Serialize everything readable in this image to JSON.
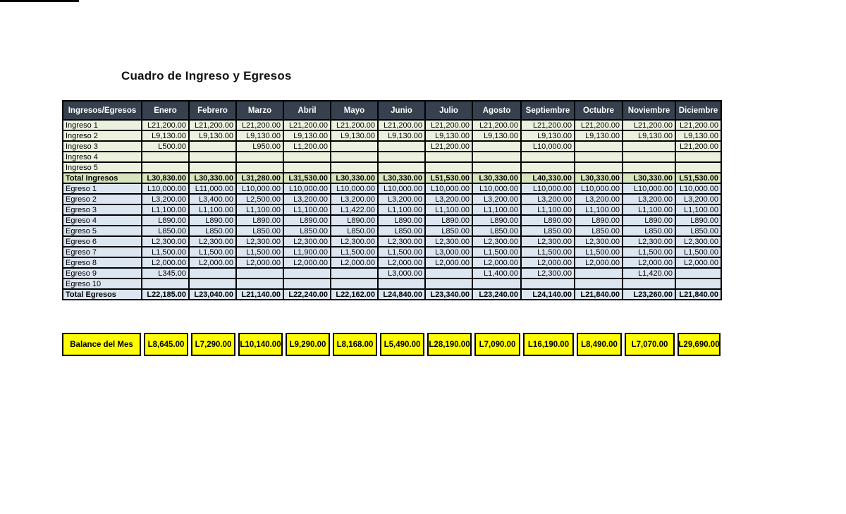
{
  "title": "Cuadro de Ingreso y Egresos",
  "currency_prefix": "L",
  "colors": {
    "header_bg": "#36404E",
    "header_text": "#FFFFFF",
    "ingreso_bg": "#EBF1DE",
    "total_ingresos_bg": "#D7E4BC",
    "egreso_bg": "#DCE6F1",
    "total_egresos_bg": "#DCE6F1",
    "balance_bg": "#FFFF00",
    "border": "#000000"
  },
  "table": {
    "header": [
      "Ingresos/Egresos",
      "Enero",
      "Febrero",
      "Marzo",
      "Abril",
      "Mayo",
      "Junio",
      "Julio",
      "Agosto",
      "Septiembre",
      "Octubre",
      "Noviembre",
      "Diciembre"
    ],
    "rows": [
      {
        "label": "Ingreso 1",
        "type": "ingreso",
        "values": [
          "L21,200.00",
          "L21,200.00",
          "L21,200.00",
          "L21,200.00",
          "L21,200.00",
          "L21,200.00",
          "L21,200.00",
          "L21,200.00",
          "L21,200.00",
          "L21,200.00",
          "L21,200.00",
          "L21,200.00"
        ]
      },
      {
        "label": "Ingreso 2",
        "type": "ingreso",
        "values": [
          "L9,130.00",
          "L9,130.00",
          "L9,130.00",
          "L9,130.00",
          "L9,130.00",
          "L9,130.00",
          "L9,130.00",
          "L9,130.00",
          "L9,130.00",
          "L9,130.00",
          "L9,130.00",
          "L9,130.00"
        ]
      },
      {
        "label": "Ingreso 3",
        "type": "ingreso",
        "values": [
          "L500.00",
          "",
          "L950.00",
          "L1,200.00",
          "",
          "",
          "L21,200.00",
          "",
          "L10,000.00",
          "",
          "",
          "L21,200.00"
        ]
      },
      {
        "label": "Ingreso 4",
        "type": "ingreso",
        "values": [
          "",
          "",
          "",
          "",
          "",
          "",
          "",
          "",
          "",
          "",
          "",
          ""
        ]
      },
      {
        "label": "Ingreso 5",
        "type": "ingreso",
        "values": [
          "",
          "",
          "",
          "",
          "",
          "",
          "",
          "",
          "",
          "",
          "",
          ""
        ]
      },
      {
        "label": "Total Ingresos",
        "type": "total-ingresos",
        "values": [
          "L30,830.00",
          "L30,330.00",
          "L31,280.00",
          "L31,530.00",
          "L30,330.00",
          "L30,330.00",
          "L51,530.00",
          "L30,330.00",
          "L40,330.00",
          "L30,330.00",
          "L30,330.00",
          "L51,530.00"
        ]
      },
      {
        "label": "Egreso 1",
        "type": "egreso",
        "values": [
          "L10,000.00",
          "L11,000.00",
          "L10,000.00",
          "L10,000.00",
          "L10,000.00",
          "L10,000.00",
          "L10,000.00",
          "L10,000.00",
          "L10,000.00",
          "L10,000.00",
          "L10,000.00",
          "L10,000.00"
        ]
      },
      {
        "label": "Egreso 2",
        "type": "egreso",
        "values": [
          "L3,200.00",
          "L3,400.00",
          "L2,500.00",
          "L3,200.00",
          "L3,200.00",
          "L3,200.00",
          "L3,200.00",
          "L3,200.00",
          "L3,200.00",
          "L3,200.00",
          "L3,200.00",
          "L3,200.00"
        ]
      },
      {
        "label": "Egreso 3",
        "type": "egreso",
        "values": [
          "L1,100.00",
          "L1,100.00",
          "L1,100.00",
          "L1,100.00",
          "L1,422.00",
          "L1,100.00",
          "L1,100.00",
          "L1,100.00",
          "L1,100.00",
          "L1,100.00",
          "L1,100.00",
          "L1,100.00"
        ]
      },
      {
        "label": "Egreso 4",
        "type": "egreso",
        "values": [
          "L890.00",
          "L890.00",
          "L890.00",
          "L890.00",
          "L890.00",
          "L890.00",
          "L890.00",
          "L890.00",
          "L890.00",
          "L890.00",
          "L890.00",
          "L890.00"
        ]
      },
      {
        "label": "Egreso 5",
        "type": "egreso",
        "values": [
          "L850.00",
          "L850.00",
          "L850.00",
          "L850.00",
          "L850.00",
          "L850.00",
          "L850.00",
          "L850.00",
          "L850.00",
          "L850.00",
          "L850.00",
          "L850.00"
        ]
      },
      {
        "label": "Egreso 6",
        "type": "egreso",
        "values": [
          "L2,300.00",
          "L2,300.00",
          "L2,300.00",
          "L2,300.00",
          "L2,300.00",
          "L2,300.00",
          "L2,300.00",
          "L2,300.00",
          "L2,300.00",
          "L2,300.00",
          "L2,300.00",
          "L2,300.00"
        ]
      },
      {
        "label": "Egreso 7",
        "type": "egreso",
        "values": [
          "L1,500.00",
          "L1,500.00",
          "L1,500.00",
          "L1,900.00",
          "L1,500.00",
          "L1,500.00",
          "L3,000.00",
          "L1,500.00",
          "L1,500.00",
          "L1,500.00",
          "L1,500.00",
          "L1,500.00"
        ]
      },
      {
        "label": "Egreso 8",
        "type": "egreso",
        "values": [
          "L2,000.00",
          "L2,000.00",
          "L2,000.00",
          "L2,000.00",
          "L2,000.00",
          "L2,000.00",
          "L2,000.00",
          "L2,000.00",
          "L2,000.00",
          "L2,000.00",
          "L2,000.00",
          "L2,000.00"
        ]
      },
      {
        "label": "Egreso 9",
        "type": "egreso",
        "values": [
          "L345.00",
          "",
          "",
          "",
          "",
          "L3,000.00",
          "",
          "L1,400.00",
          "L2,300.00",
          "",
          "L1,420.00",
          ""
        ]
      },
      {
        "label": "Egreso 10",
        "type": "egreso",
        "values": [
          "",
          "",
          "",
          "",
          "",
          "",
          "",
          "",
          "",
          "",
          "",
          ""
        ]
      },
      {
        "label": "Total Egresos",
        "type": "total-egresos",
        "values": [
          "L22,185.00",
          "L23,040.00",
          "L21,140.00",
          "L22,240.00",
          "L22,162.00",
          "L24,840.00",
          "L23,340.00",
          "L23,240.00",
          "L24,140.00",
          "L21,840.00",
          "L23,260.00",
          "L21,840.00"
        ]
      }
    ]
  },
  "balance": {
    "label": "Balance del Mes",
    "values": [
      "L8,645.00",
      "L7,290.00",
      "L10,140.00",
      "L9,290.00",
      "L8,168.00",
      "L5,490.00",
      "L28,190.00",
      "L7,090.00",
      "L16,190.00",
      "L8,490.00",
      "L7,070.00",
      "L29,690.00"
    ]
  }
}
